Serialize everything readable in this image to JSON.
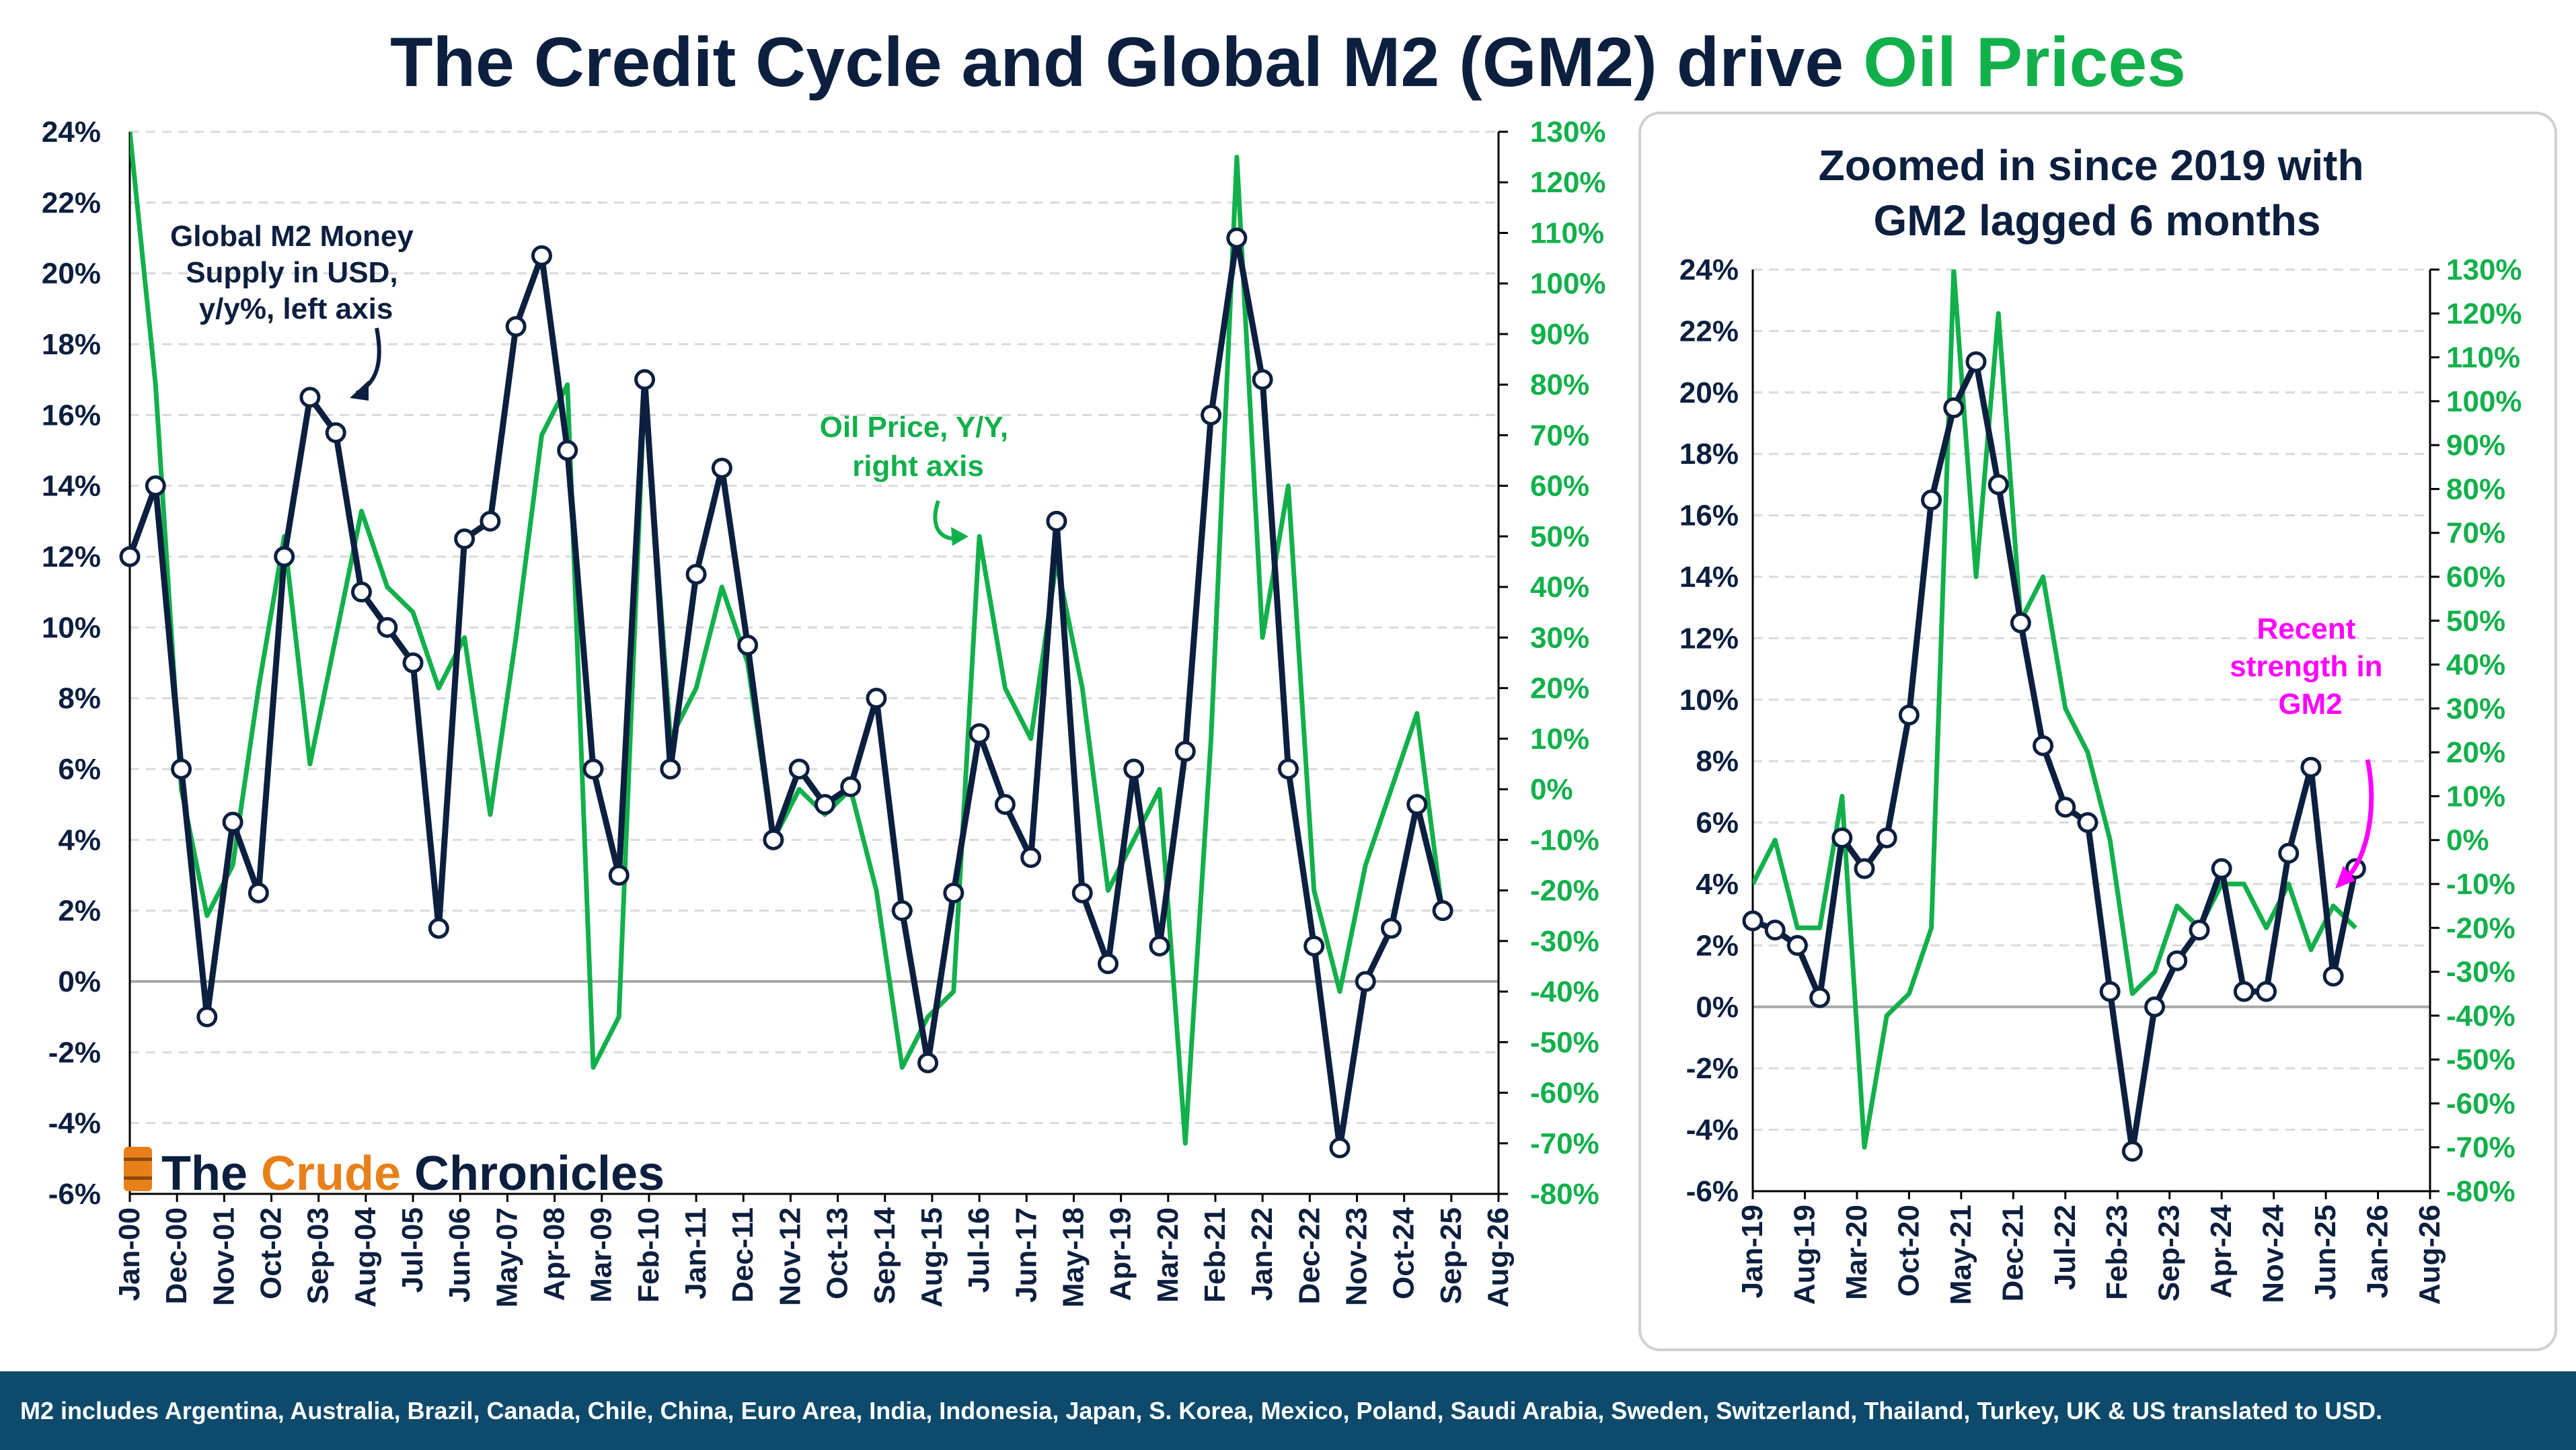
{
  "title": {
    "part1": "The Credit Cycle and Global M2 (GM2) drive ",
    "part2": "Oil Prices"
  },
  "colors": {
    "navy": "#0c1f3f",
    "green": "#12b04b",
    "magenta": "#ff00ff",
    "footer": "#0d4a6b"
  },
  "branding": {
    "logo_text_1": "The ",
    "logo_text_2": "Crude",
    "logo_text_3": " Chronicles"
  },
  "footer": {
    "text": "M2 includes Argentina, Australia, Brazil, Canada, Chile, China, Euro Area, India, Indonesia, Japan, S. Korea, Mexico, Poland, Saudi Arabia, Sweden, Switzerland, Thailand, Turkey, UK & US translated to USD."
  },
  "chart_data": [
    {
      "type": "line",
      "title": "",
      "y_left": {
        "min": -6,
        "max": 24,
        "step": 2,
        "unit": "%",
        "tick_labels": [
          "-6%",
          "-4%",
          "-2%",
          "0%",
          "2%",
          "4%",
          "6%",
          "8%",
          "10%",
          "12%",
          "14%",
          "16%",
          "18%",
          "20%",
          "22%",
          "24%"
        ]
      },
      "y_right": {
        "min": -80,
        "max": 130,
        "step": 10,
        "unit": "%",
        "tick_labels": [
          "-80%",
          "-70%",
          "-60%",
          "-50%",
          "-40%",
          "-30%",
          "-20%",
          "-10%",
          "0%",
          "10%",
          "20%",
          "30%",
          "40%",
          "50%",
          "60%",
          "70%",
          "80%",
          "90%",
          "100%",
          "110%",
          "120%",
          "130%"
        ]
      },
      "x_range": [
        "2000-01",
        "2026-08"
      ],
      "x_tick_labels": [
        "Jan-00",
        "Dec-00",
        "Nov-01",
        "Oct-02",
        "Sep-03",
        "Aug-04",
        "Jul-05",
        "Jun-06",
        "May-07",
        "Apr-08",
        "Mar-09",
        "Feb-10",
        "Jan-11",
        "Dec-11",
        "Nov-12",
        "Oct-13",
        "Sep-14",
        "Aug-15",
        "Jul-16",
        "Jun-17",
        "May-18",
        "Apr-19",
        "Mar-20",
        "Feb-21",
        "Jan-22",
        "Dec-22",
        "Nov-23",
        "Oct-24",
        "Sep-25",
        "Aug-26"
      ],
      "annotations": {
        "gm2": [
          "Global M2 Money",
          "Supply in USD,",
          "y/y%, left axis"
        ],
        "oil": [
          "Oil Price, Y/Y,",
          "right axis"
        ]
      },
      "series": [
        {
          "name": "Global M2 Money Supply in USD, y/y%",
          "axis": "left",
          "color": "#0c1f3f",
          "markers": true,
          "x": [
            "2000-01",
            "2000-07",
            "2001-01",
            "2001-07",
            "2002-01",
            "2002-07",
            "2003-01",
            "2003-07",
            "2004-01",
            "2004-07",
            "2005-01",
            "2005-07",
            "2006-01",
            "2006-07",
            "2007-01",
            "2007-07",
            "2008-01",
            "2008-07",
            "2009-01",
            "2009-07",
            "2010-01",
            "2010-07",
            "2011-01",
            "2011-07",
            "2012-01",
            "2012-07",
            "2013-01",
            "2013-07",
            "2014-01",
            "2014-07",
            "2015-01",
            "2015-07",
            "2016-01",
            "2016-07",
            "2017-01",
            "2017-07",
            "2018-01",
            "2018-07",
            "2019-01",
            "2019-07",
            "2020-01",
            "2020-07",
            "2021-01",
            "2021-07",
            "2022-01",
            "2022-07",
            "2023-01",
            "2023-07",
            "2024-01",
            "2024-07",
            "2025-01",
            "2025-07"
          ],
          "values": [
            12.0,
            14.0,
            6.0,
            -1.0,
            4.5,
            2.5,
            12.0,
            16.5,
            15.5,
            11.0,
            10.0,
            9.0,
            1.5,
            12.5,
            13.0,
            18.5,
            20.5,
            15.0,
            6.0,
            3.0,
            17.0,
            6.0,
            11.5,
            14.5,
            9.5,
            4.0,
            6.0,
            5.0,
            5.5,
            8.0,
            2.0,
            -2.3,
            2.5,
            7.0,
            5.0,
            3.5,
            13.0,
            2.5,
            0.5,
            6.0,
            1.0,
            6.5,
            16.0,
            21.0,
            17.0,
            6.0,
            1.0,
            -4.7,
            0.0,
            1.5,
            5.0,
            2.0
          ]
        },
        {
          "name": "Oil Price, Y/Y",
          "axis": "right",
          "color": "#12b04b",
          "markers": false,
          "x": [
            "2000-01",
            "2000-07",
            "2001-01",
            "2001-07",
            "2002-01",
            "2002-07",
            "2003-01",
            "2003-07",
            "2004-01",
            "2004-07",
            "2005-01",
            "2005-07",
            "2006-01",
            "2006-07",
            "2007-01",
            "2007-07",
            "2008-01",
            "2008-07",
            "2009-01",
            "2009-07",
            "2010-01",
            "2010-07",
            "2011-01",
            "2011-07",
            "2012-01",
            "2012-07",
            "2013-01",
            "2013-07",
            "2014-01",
            "2014-07",
            "2015-01",
            "2015-07",
            "2016-01",
            "2016-07",
            "2017-01",
            "2017-07",
            "2018-01",
            "2018-07",
            "2019-01",
            "2019-07",
            "2020-01",
            "2020-07",
            "2021-01",
            "2021-07",
            "2022-01",
            "2022-07",
            "2023-01",
            "2023-07",
            "2024-01",
            "2024-07",
            "2025-01",
            "2025-07"
          ],
          "values": [
            130,
            80,
            0,
            -25,
            -15,
            20,
            50,
            5,
            30,
            55,
            40,
            35,
            20,
            30,
            -5,
            30,
            70,
            80,
            -55,
            -45,
            80,
            10,
            20,
            40,
            25,
            -10,
            0,
            -5,
            0,
            -20,
            -55,
            -45,
            -40,
            50,
            20,
            10,
            45,
            20,
            -20,
            -10,
            0,
            -70,
            10,
            125,
            30,
            60,
            -20,
            -40,
            -15,
            0,
            15,
            -25
          ]
        }
      ]
    },
    {
      "type": "line",
      "title": "Zoomed in since 2019 with GM2 lagged 6 months",
      "y_left": {
        "min": -6,
        "max": 24,
        "step": 2,
        "unit": "%",
        "tick_labels": [
          "-6%",
          "-4%",
          "-2%",
          "0%",
          "2%",
          "4%",
          "6%",
          "8%",
          "10%",
          "12%",
          "14%",
          "16%",
          "18%",
          "20%",
          "22%",
          "24%"
        ]
      },
      "y_right": {
        "min": -80,
        "max": 130,
        "step": 10,
        "unit": "%",
        "tick_labels": [
          "-80%",
          "-70%",
          "-60%",
          "-50%",
          "-40%",
          "-30%",
          "-20%",
          "-10%",
          "0%",
          "10%",
          "20%",
          "30%",
          "40%",
          "50%",
          "60%",
          "70%",
          "80%",
          "90%",
          "100%",
          "110%",
          "120%",
          "130%"
        ]
      },
      "x_range": [
        "2019-01",
        "2026-08"
      ],
      "x_tick_labels": [
        "Jan-19",
        "Aug-19",
        "Mar-20",
        "Oct-20",
        "May-21",
        "Dec-21",
        "Jul-22",
        "Feb-23",
        "Sep-23",
        "Apr-24",
        "Nov-24",
        "Jun-25",
        "Jan-26",
        "Aug-26"
      ],
      "annotations": {
        "recent": [
          "Recent",
          "strength in",
          "GM2"
        ]
      },
      "series": [
        {
          "name": "Global M2 (lagged 6 months), y/y%",
          "axis": "left",
          "color": "#0c1f3f",
          "markers": true,
          "x": [
            "2019-01",
            "2019-04",
            "2019-07",
            "2019-10",
            "2020-01",
            "2020-04",
            "2020-07",
            "2020-10",
            "2021-01",
            "2021-04",
            "2021-07",
            "2021-10",
            "2022-01",
            "2022-04",
            "2022-07",
            "2022-10",
            "2023-01",
            "2023-04",
            "2023-07",
            "2023-10",
            "2024-01",
            "2024-04",
            "2024-07",
            "2024-10",
            "2025-01",
            "2025-04",
            "2025-07",
            "2025-10"
          ],
          "values": [
            2.8,
            2.5,
            2.0,
            0.3,
            5.5,
            4.5,
            5.5,
            9.5,
            16.5,
            19.5,
            21.0,
            17.0,
            12.5,
            8.5,
            6.5,
            6.0,
            0.5,
            -4.7,
            0.0,
            1.5,
            2.5,
            4.5,
            0.5,
            0.5,
            5.0,
            7.8,
            1.0,
            4.5
          ]
        },
        {
          "name": "Oil Price, Y/Y",
          "axis": "right",
          "color": "#12b04b",
          "markers": false,
          "x": [
            "2019-01",
            "2019-04",
            "2019-07",
            "2019-10",
            "2020-01",
            "2020-04",
            "2020-07",
            "2020-10",
            "2021-01",
            "2021-04",
            "2021-07",
            "2021-10",
            "2022-01",
            "2022-04",
            "2022-07",
            "2022-10",
            "2023-01",
            "2023-04",
            "2023-07",
            "2023-10",
            "2024-01",
            "2024-04",
            "2024-07",
            "2024-10",
            "2025-01",
            "2025-04",
            "2025-07",
            "2025-10"
          ],
          "values": [
            -10,
            0,
            -20,
            -20,
            10,
            -70,
            -40,
            -35,
            -20,
            130,
            60,
            120,
            50,
            60,
            30,
            20,
            0,
            -35,
            -30,
            -15,
            -20,
            -10,
            -10,
            -20,
            -10,
            -25,
            -15,
            -20
          ]
        }
      ]
    }
  ]
}
